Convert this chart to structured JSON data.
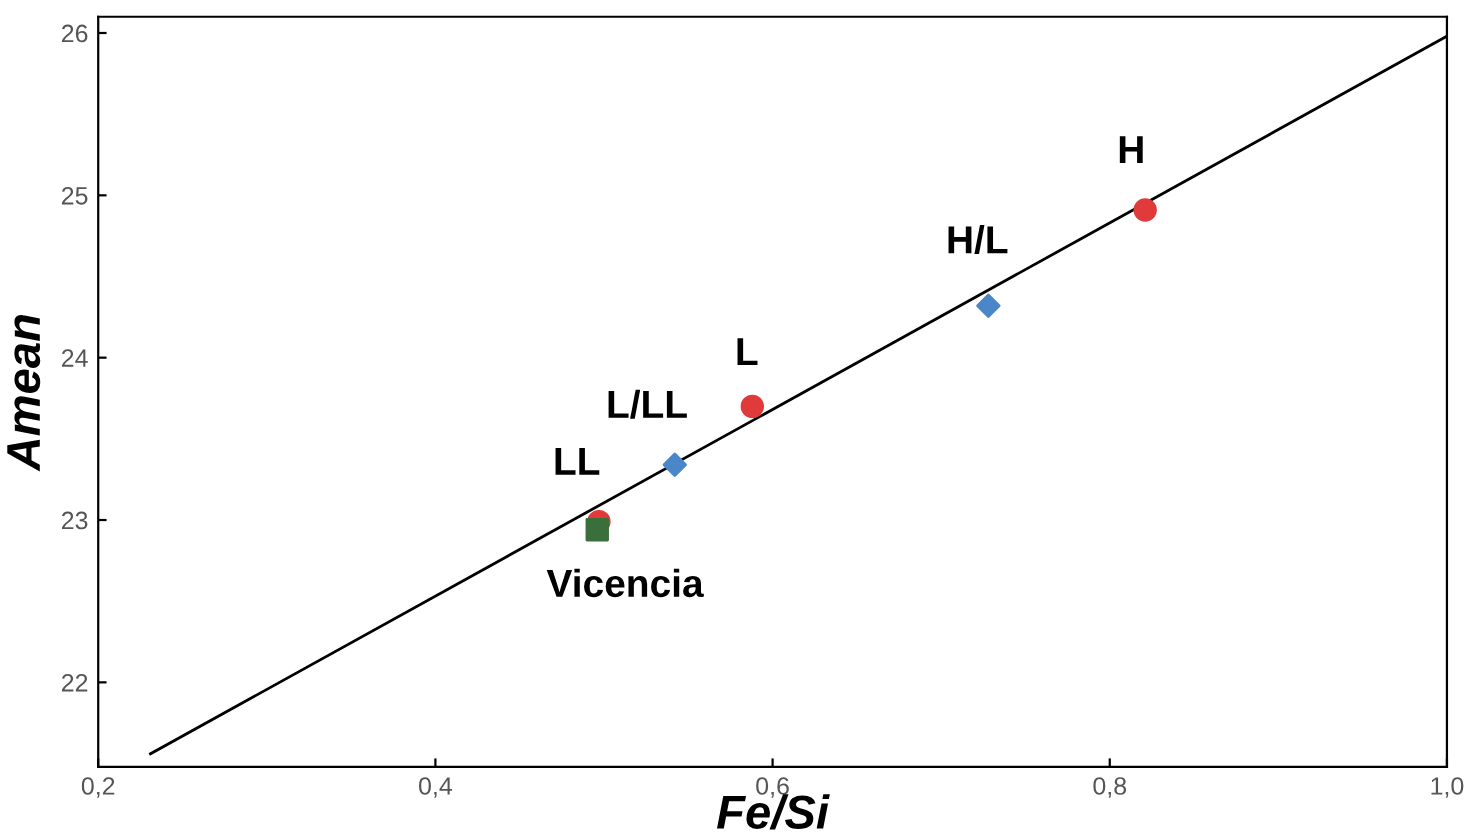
{
  "chart_data": {
    "type": "scatter",
    "xlabel": "Fe/Si",
    "ylabel": "Amean",
    "series": [
      {
        "color": "#e03a3a",
        "marker": "circle",
        "x": [
          0.497,
          0.588,
          0.821
        ],
        "values": [
          22.99,
          23.7,
          24.91
        ]
      },
      {
        "color": "#4a86c8",
        "marker": "diamond",
        "x": [
          0.542,
          0.728
        ],
        "values": [
          23.34,
          24.32
        ]
      },
      {
        "color": "#3a6e3a",
        "marker": "square",
        "x": [
          0.496
        ],
        "values": [
          22.94
        ]
      },
      {
        "type": "line",
        "color": "#000000",
        "marker": "none",
        "x": [
          0.231,
          1.0
        ],
        "values": [
          21.56,
          25.98
        ]
      }
    ],
    "annotations": [
      {
        "text": "H",
        "x": 0.821,
        "y": 24.91
      },
      {
        "text": "H/L",
        "x": 0.728,
        "y": 24.32
      },
      {
        "text": "L",
        "x": 0.588,
        "y": 23.7
      },
      {
        "text": "L/LL",
        "x": 0.542,
        "y": 23.34
      },
      {
        "text": "LL",
        "x": 0.497,
        "y": 22.99
      },
      {
        "text": "Vicencia",
        "x": 0.496,
        "y": 22.94
      }
    ],
    "xlim": [
      0.2,
      1.0
    ],
    "ylim": [
      21.48,
      26.1
    ],
    "xticks": [
      {
        "value": 0.2,
        "label": "0,2"
      },
      {
        "value": 0.4,
        "label": "0,4"
      },
      {
        "value": 0.6,
        "label": "0,6"
      },
      {
        "value": 0.8,
        "label": "0,8"
      },
      {
        "value": 1.0,
        "label": "1,0"
      }
    ],
    "yticks": [
      22,
      23,
      24,
      25,
      26
    ],
    "grid": false,
    "legend": false
  }
}
